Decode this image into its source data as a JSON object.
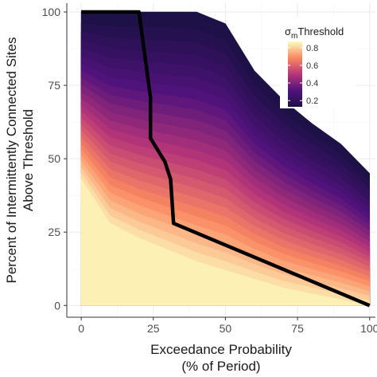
{
  "chart_data": {
    "type": "area",
    "xlabel_line1": "Exceedance Probability",
    "xlabel_line2": "(% of Period)",
    "ylabel_line1": "Percent of Intermittently Connected Sites",
    "ylabel_line2": "Above Threshold",
    "xlim": [
      -5,
      102
    ],
    "ylim": [
      -4,
      103
    ],
    "x_ticks": [
      0,
      25,
      50,
      75,
      100
    ],
    "y_ticks": [
      0,
      25,
      50,
      75,
      100
    ],
    "x_tick_labels": [
      "0",
      "25",
      "50",
      "75",
      "100"
    ],
    "y_tick_labels": [
      "0",
      "25",
      "50",
      "75",
      "100"
    ],
    "grid": true,
    "legend": {
      "title_symbol": "σ",
      "title_subscript": "m",
      "title_text": "Threshold",
      "placement": "top-right",
      "range": [
        0.13,
        0.87
      ],
      "ticks": [
        0.2,
        0.4,
        0.6,
        0.8
      ],
      "tick_labels": [
        "0.2",
        "0.4",
        "0.6",
        "0.8"
      ]
    },
    "colors": {
      "threshold_low": "#1d1147",
      "threshold_high": "#fcfdbf",
      "highlight_line": "#000000",
      "panel_background": "#ffffff",
      "grid": "#ebebeb",
      "axis": "#333333"
    },
    "threshold_curves": {
      "thresholds": [
        0.13,
        0.16,
        0.19,
        0.22,
        0.25,
        0.28,
        0.31,
        0.34,
        0.37,
        0.4,
        0.43,
        0.46,
        0.49,
        0.52,
        0.55,
        0.58,
        0.61,
        0.64,
        0.67,
        0.7,
        0.73,
        0.76,
        0.79,
        0.82,
        0.85
      ],
      "x": [
        0,
        10,
        20,
        30,
        40,
        50,
        60,
        70,
        80,
        90,
        100
      ],
      "low_threshold_y": [
        100,
        100,
        100,
        100,
        100,
        96,
        80,
        70,
        62,
        55,
        45
      ],
      "high_threshold_y": [
        43,
        28,
        23,
        19,
        15,
        12,
        9,
        6,
        4,
        2,
        0
      ]
    },
    "highlight_series": {
      "threshold": 0.55,
      "x": [
        0,
        20,
        24,
        24,
        29,
        31,
        32,
        100
      ],
      "y": [
        100,
        100,
        71,
        57,
        49,
        43,
        28,
        0
      ]
    }
  }
}
